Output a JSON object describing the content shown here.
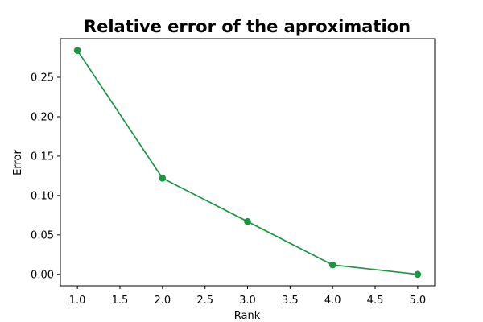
{
  "chart_data": {
    "type": "line",
    "title": "Relative error of the aproximation",
    "xlabel": "Rank",
    "ylabel": "Error",
    "xlim": [
      0.8,
      5.2
    ],
    "ylim": [
      -0.0145,
      0.299
    ],
    "xticks": [
      1.0,
      1.5,
      2.0,
      2.5,
      3.0,
      3.5,
      4.0,
      4.5,
      5.0
    ],
    "xtick_labels": [
      "1.0",
      "1.5",
      "2.0",
      "2.5",
      "3.0",
      "3.5",
      "4.0",
      "4.5",
      "5.0"
    ],
    "yticks": [
      0.0,
      0.05,
      0.1,
      0.15,
      0.2,
      0.25
    ],
    "ytick_labels": [
      "0.00",
      "0.05",
      "0.10",
      "0.15",
      "0.20",
      "0.25"
    ],
    "grid": false,
    "series": [
      {
        "color": "#1a9641",
        "marker": "circle",
        "x": [
          1,
          2,
          3,
          4,
          5
        ],
        "y": [
          0.284,
          0.122,
          0.067,
          0.012,
          0.0
        ]
      }
    ]
  }
}
